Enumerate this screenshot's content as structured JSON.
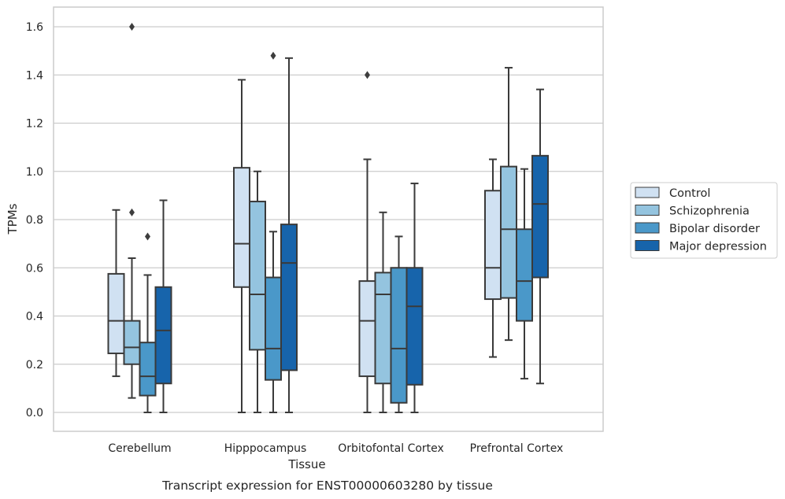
{
  "caption": "Transcript expression for ENST00000603280 by tissue",
  "colors": {
    "Control": "#d0e1f2",
    "Schizophrenia": "#94c4df",
    "Bipolar disorder": "#4a98c9",
    "Major depression": "#1764ab",
    "edge": "#3a3a3a",
    "grid": "#cccccc",
    "frame": "#cccccc"
  },
  "chart_data": {
    "type": "box",
    "xlabel": "Tissue",
    "ylabel": "TPMs",
    "ylim": [
      -0.08,
      1.68
    ],
    "yticks": [
      "0.0",
      "0.2",
      "0.4",
      "0.6",
      "0.8",
      "1.0",
      "1.2",
      "1.4",
      "1.6"
    ],
    "grid": true,
    "legend_position": "right",
    "categories": [
      "Cerebellum",
      "Hipppocampus",
      "Orbitofontal Cortex",
      "Prefrontal Cortex"
    ],
    "series": [
      {
        "name": "Control",
        "boxes": [
          {
            "whislo": 0.15,
            "q1": 0.245,
            "med": 0.38,
            "q3": 0.575,
            "whishi": 0.84,
            "fliers": []
          },
          {
            "whislo": 0.0,
            "q1": 0.52,
            "med": 0.7,
            "q3": 1.015,
            "whishi": 1.38,
            "fliers": []
          },
          {
            "whislo": 0.0,
            "q1": 0.15,
            "med": 0.38,
            "q3": 0.545,
            "whishi": 1.05,
            "fliers": [
              1.4
            ]
          },
          {
            "whislo": 0.23,
            "q1": 0.47,
            "med": 0.6,
            "q3": 0.92,
            "whishi": 1.05,
            "fliers": []
          }
        ]
      },
      {
        "name": "Schizophrenia",
        "boxes": [
          {
            "whislo": 0.06,
            "q1": 0.2,
            "med": 0.27,
            "q3": 0.38,
            "whishi": 0.64,
            "fliers": [
              0.83,
              1.6
            ]
          },
          {
            "whislo": 0.0,
            "q1": 0.26,
            "med": 0.49,
            "q3": 0.875,
            "whishi": 1.0,
            "fliers": []
          },
          {
            "whislo": 0.0,
            "q1": 0.12,
            "med": 0.49,
            "q3": 0.58,
            "whishi": 0.83,
            "fliers": []
          },
          {
            "whislo": 0.3,
            "q1": 0.475,
            "med": 0.76,
            "q3": 1.02,
            "whishi": 1.43,
            "fliers": []
          }
        ]
      },
      {
        "name": "Bipolar disorder",
        "boxes": [
          {
            "whislo": 0.0,
            "q1": 0.07,
            "med": 0.15,
            "q3": 0.29,
            "whishi": 0.57,
            "fliers": [
              0.73
            ]
          },
          {
            "whislo": 0.0,
            "q1": 0.135,
            "med": 0.265,
            "q3": 0.56,
            "whishi": 0.75,
            "fliers": [
              1.48
            ]
          },
          {
            "whislo": 0.0,
            "q1": 0.04,
            "med": 0.265,
            "q3": 0.6,
            "whishi": 0.73,
            "fliers": []
          },
          {
            "whislo": 0.14,
            "q1": 0.38,
            "med": 0.545,
            "q3": 0.76,
            "whishi": 1.01,
            "fliers": []
          }
        ]
      },
      {
        "name": "Major depression",
        "boxes": [
          {
            "whislo": 0.0,
            "q1": 0.12,
            "med": 0.34,
            "q3": 0.52,
            "whishi": 0.88,
            "fliers": []
          },
          {
            "whislo": 0.0,
            "q1": 0.175,
            "med": 0.62,
            "q3": 0.78,
            "whishi": 1.47,
            "fliers": []
          },
          {
            "whislo": 0.0,
            "q1": 0.115,
            "med": 0.44,
            "q3": 0.6,
            "whishi": 0.95,
            "fliers": []
          },
          {
            "whislo": 0.12,
            "q1": 0.56,
            "med": 0.865,
            "q3": 1.065,
            "whishi": 1.34,
            "fliers": []
          }
        ]
      }
    ]
  }
}
